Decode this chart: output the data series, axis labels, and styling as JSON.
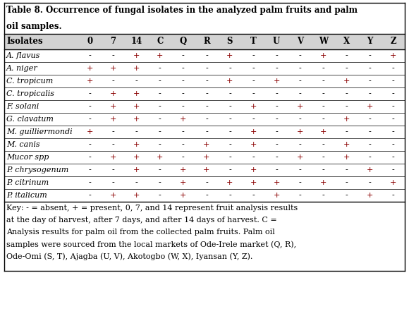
{
  "title_line1": "Table 8. Occurrence of fungal isolates in the analyzed palm fruits and palm",
  "title_line2": "oil samples.",
  "header": [
    "Isolates",
    "0",
    "7",
    "14",
    "C",
    "Q",
    "R",
    "S",
    "T",
    "U",
    "V",
    "W",
    "X",
    "Y",
    "Z"
  ],
  "rows": [
    [
      "A. flavus",
      "-",
      "-",
      "+",
      "+",
      "-",
      "-",
      "+",
      "-",
      "-",
      "-",
      "+",
      "-",
      "-",
      "+"
    ],
    [
      "A. niger",
      "+",
      "+",
      "+",
      "-",
      "-",
      "-",
      "-",
      "-",
      "-",
      "-",
      "-",
      "-",
      "-",
      "-"
    ],
    [
      "C. tropicum",
      "+",
      "-",
      "-",
      "-",
      "-",
      "-",
      "+",
      "-",
      "+",
      "-",
      "-",
      "+",
      "-",
      "-"
    ],
    [
      "C. tropicalis",
      "-",
      "+",
      "+",
      "-",
      "-",
      "-",
      "-",
      "-",
      "-",
      "-",
      "-",
      "-",
      "-",
      "-"
    ],
    [
      "F. solani",
      "-",
      "+",
      "+",
      "-",
      "-",
      "-",
      "-",
      "+",
      "-",
      "+",
      "-",
      "-",
      "+",
      "-"
    ],
    [
      "G. clavatum",
      "-",
      "+",
      "+",
      "-",
      "+",
      "-",
      "-",
      "-",
      "-",
      "-",
      "-",
      "+",
      "-",
      "-"
    ],
    [
      "M. guilliermondi",
      "+",
      "-",
      "-",
      "-",
      "-",
      "-",
      "-",
      "+",
      "-",
      "+",
      "+",
      "-",
      "-",
      "-"
    ],
    [
      "M. canis",
      "-",
      "-",
      "+",
      "-",
      "-",
      "+",
      "-",
      "+",
      "-",
      "-",
      "-",
      "+",
      "-",
      "-"
    ],
    [
      "Mucor spp",
      "-",
      "+",
      "+",
      "+",
      "-",
      "+",
      "-",
      "-",
      "-",
      "+",
      "-",
      "+",
      "-",
      "-"
    ],
    [
      "P. chrysogenum",
      "-",
      "-",
      "+",
      "-",
      "+",
      "+",
      "-",
      "+",
      "-",
      "-",
      "-",
      "-",
      "+",
      "-"
    ],
    [
      "P. citrinum",
      "-",
      "-",
      "-",
      "-",
      "+",
      "-",
      "+",
      "+",
      "+",
      "-",
      "+",
      "-",
      "-",
      "+"
    ],
    [
      "P. italicum",
      "-",
      "+",
      "+",
      "-",
      "+",
      "-",
      "-",
      "-",
      "+",
      "-",
      "-",
      "-",
      "+",
      "-"
    ]
  ],
  "key_lines": [
    "Key: - = absent, + = present, 0, 7, and 14 represent fruit analysis results",
    "at the day of harvest, after 7 days, and after 14 days of harvest. C =",
    "Analysis results for palm oil from the collected palm fruits. Palm oil",
    "samples were sourced from the local markets of Ode-Irele market (Q, R),",
    "Ode-Omi (S, T), Ajagba (U, V), Akotogbo (W, X), Iyansan (Y, Z)."
  ],
  "header_bg": "#d3d3d3",
  "border_color": "#000000",
  "text_color": "#000000",
  "plus_color": "#8B0000",
  "title_fontsize": 8.5,
  "header_fontsize": 8.5,
  "body_fontsize": 8.0,
  "key_fontsize": 8.0
}
